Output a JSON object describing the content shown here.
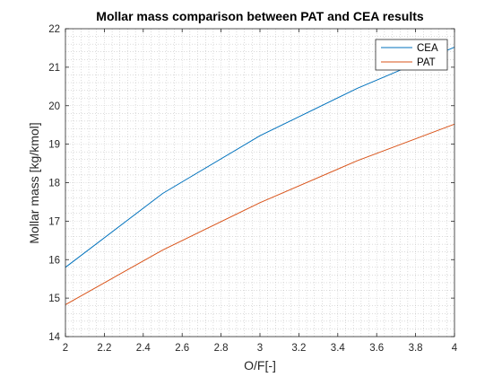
{
  "chart_data": {
    "type": "line",
    "title": "Mollar mass comparison between PAT and CEA results",
    "xlabel": "O/F[-]",
    "ylabel": "Mollar mass [kg/kmol]",
    "xlim": [
      2,
      4
    ],
    "ylim": [
      14,
      22
    ],
    "x_ticks": [
      "2",
      "2.2",
      "2.4",
      "2.6",
      "2.8",
      "3",
      "3.2",
      "3.4",
      "3.6",
      "3.8",
      "4"
    ],
    "y_ticks": [
      "14",
      "15",
      "16",
      "17",
      "18",
      "19",
      "20",
      "21",
      "22"
    ],
    "grid": true,
    "minor_grid": true,
    "legend_position": "top-right",
    "x": [
      2,
      2.5,
      3,
      3.5,
      4
    ],
    "series": [
      {
        "name": "CEA",
        "color": "#0072BD",
        "values": [
          15.8,
          17.72,
          19.22,
          20.45,
          21.52
        ]
      },
      {
        "name": "PAT",
        "color": "#D95319",
        "values": [
          14.83,
          16.25,
          17.48,
          18.57,
          19.52
        ]
      }
    ]
  }
}
